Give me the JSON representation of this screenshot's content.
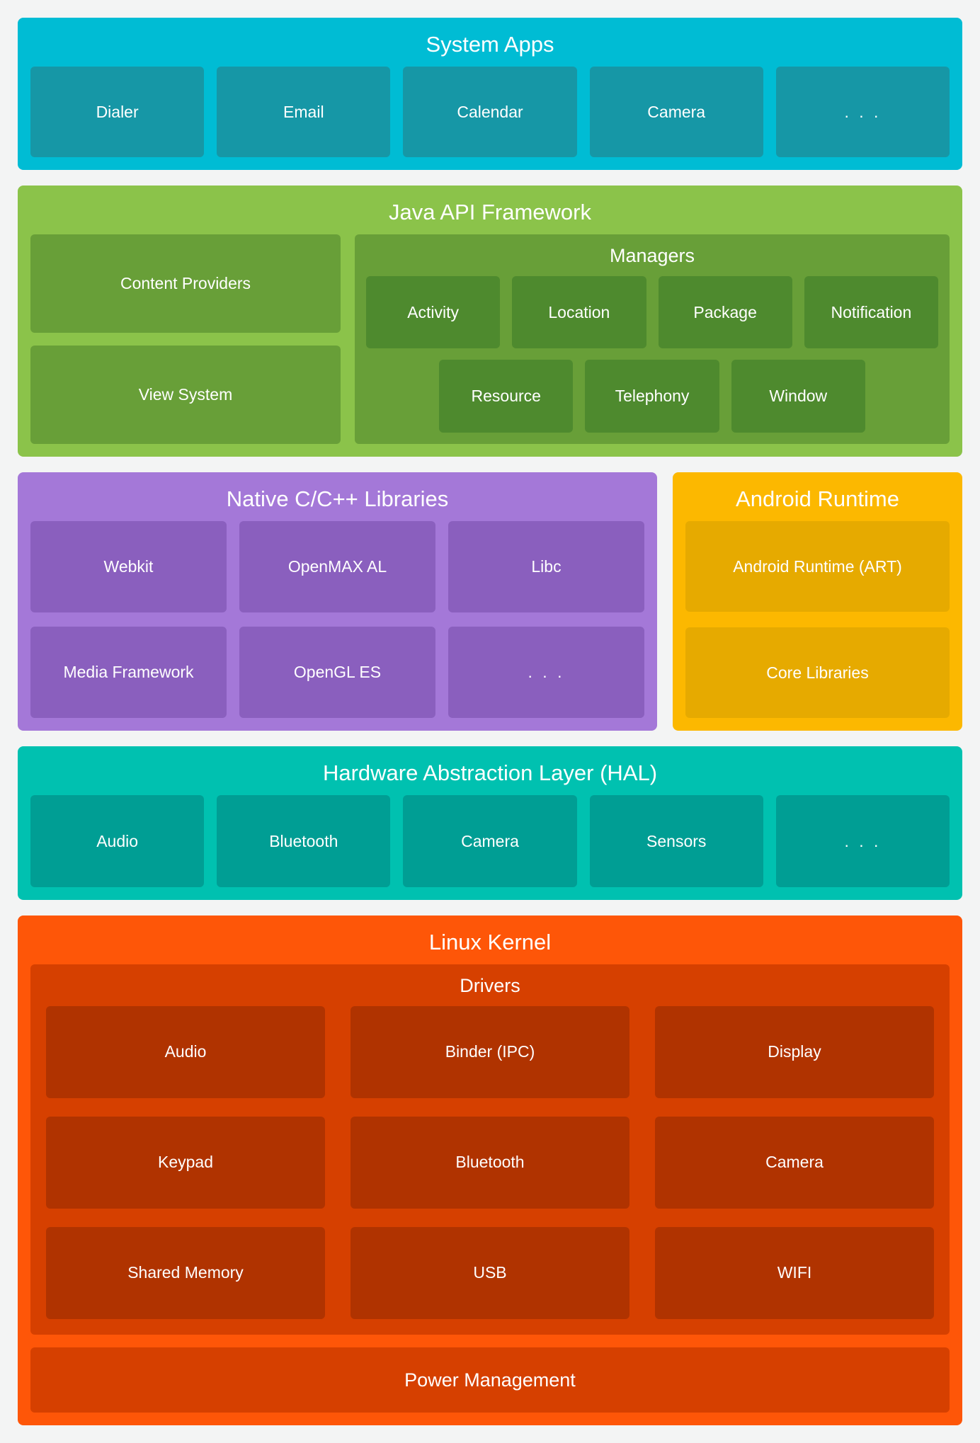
{
  "page": {
    "background": "#f3f4f4",
    "text_color": "#ffffff"
  },
  "system_apps": {
    "title": "System Apps",
    "colors": {
      "bg": "#00bcd4",
      "box": "#1697a6"
    },
    "items": [
      "Dialer",
      "Email",
      "Calendar",
      "Camera",
      ". . ."
    ]
  },
  "java_api": {
    "title": "Java API Framework",
    "colors": {
      "bg": "#8bc34a",
      "box": "#689f38",
      "inner_box": "#4e8a2e"
    },
    "left_items": [
      "Content Providers",
      "View System"
    ],
    "managers": {
      "title": "Managers",
      "row1": [
        "Activity",
        "Location",
        "Package",
        "Notification"
      ],
      "row2": [
        "Resource",
        "Telephony",
        "Window"
      ]
    }
  },
  "native_libs": {
    "title": "Native C/C++ Libraries",
    "colors": {
      "bg": "#a478d8",
      "box": "#8a5fbe"
    },
    "items": [
      "Webkit",
      "OpenMAX AL",
      "Libc",
      "Media Framework",
      "OpenGL ES",
      ". . ."
    ]
  },
  "android_runtime": {
    "title": "Android Runtime",
    "colors": {
      "bg": "#fcb800",
      "box": "#e6aa00"
    },
    "items": [
      "Android Runtime (ART)",
      "Core Libraries"
    ]
  },
  "hal": {
    "title": "Hardware Abstraction Layer (HAL)",
    "colors": {
      "bg": "#00c1b0",
      "box": "#009e94"
    },
    "items": [
      "Audio",
      "Bluetooth",
      "Camera",
      "Sensors",
      ". . ."
    ]
  },
  "linux_kernel": {
    "title": "Linux Kernel",
    "colors": {
      "bg": "#fe5608",
      "container": "#d64000",
      "box": "#b03300"
    },
    "drivers": {
      "title": "Drivers",
      "items": [
        "Audio",
        "Binder (IPC)",
        "Display",
        "Keypad",
        "Bluetooth",
        "Camera",
        "Shared Memory",
        "USB",
        "WIFI"
      ]
    },
    "footer": "Power Management"
  }
}
